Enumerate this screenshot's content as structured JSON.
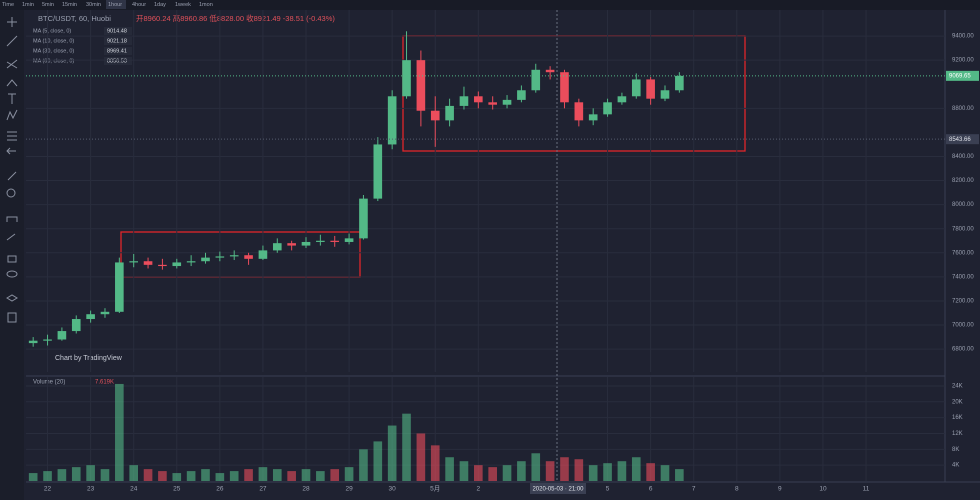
{
  "toolbar": {
    "intervals": [
      "Time",
      "1min",
      "5min",
      "15min",
      "30min",
      "1hour",
      "4hour",
      "1day",
      "1week",
      "1mon"
    ],
    "active": 5
  },
  "header": {
    "symbol": "BTC/USDT, 60, Huobi",
    "ohlc": "开8960.24 高8960.86 低8828.00 收8921.49 -38.51 (-0.43%)"
  },
  "indicators": [
    {
      "name": "MA (5, close, 0)",
      "value": "9014.48"
    },
    {
      "name": "MA (10, close, 0)",
      "value": "9021.18"
    },
    {
      "name": "MA (30, close, 0)",
      "value": "8969.41"
    },
    {
      "name": "MA (60, close, 0)",
      "value": "8856.53"
    }
  ],
  "watermark": "Chart by TradingView",
  "volume_header": {
    "name": "Volume (20)",
    "value": "7.619K"
  },
  "crosshair_label": "2020-05-03 · 21:00",
  "chart_data": {
    "type": "candlestick",
    "categories": [
      null,
      "22",
      null,
      null,
      "23",
      null,
      null,
      "24",
      null,
      null,
      "25",
      null,
      null,
      "26",
      null,
      null,
      "27",
      null,
      null,
      "28",
      null,
      null,
      "29",
      null,
      null,
      "30",
      null,
      null,
      "5月",
      null,
      null,
      "2",
      null,
      null,
      null,
      null,
      null,
      null,
      null,
      null,
      "5",
      null,
      null,
      "6",
      null,
      null,
      "7",
      null,
      null,
      "8",
      null,
      null,
      "9",
      null,
      null,
      "10",
      null,
      null,
      "11",
      null,
      null,
      null,
      null,
      null
    ],
    "open": [
      6850,
      6870,
      6880,
      6950,
      7050,
      7090,
      7110,
      7520,
      7530,
      7500,
      7490,
      7520,
      7530,
      7560,
      7570,
      7580,
      7550,
      7620,
      7680,
      7660,
      7690,
      7700,
      7690,
      7720,
      8050,
      8500,
      8900,
      9200,
      8780,
      8700,
      8820,
      8900,
      8850,
      8830,
      8870,
      8950,
      9120,
      9100,
      8850,
      8700,
      8750,
      8850,
      8900,
      9040,
      8880,
      8950,
      null,
      null,
      null,
      null,
      null,
      null,
      null,
      null,
      null,
      null,
      null,
      null,
      null,
      null,
      null,
      null,
      null,
      null
    ],
    "high": [
      6900,
      6920,
      6980,
      7080,
      7120,
      7140,
      7560,
      7590,
      7560,
      7550,
      7550,
      7580,
      7600,
      7610,
      7620,
      7600,
      7660,
      7720,
      7700,
      7730,
      7750,
      7740,
      7760,
      8080,
      8560,
      8950,
      9440,
      9280,
      8900,
      8880,
      8980,
      8940,
      8900,
      8910,
      8990,
      9170,
      9150,
      9120,
      8880,
      8800,
      8880,
      8930,
      9090,
      9060,
      8990,
      9100,
      null,
      null,
      null,
      null,
      null,
      null,
      null,
      null,
      null,
      null,
      null,
      null,
      null,
      null,
      null,
      null,
      null,
      null
    ],
    "low": [
      6820,
      6830,
      6870,
      6930,
      7020,
      7060,
      7100,
      7480,
      7470,
      7460,
      7470,
      7490,
      7510,
      7530,
      7540,
      7500,
      7540,
      7600,
      7620,
      7640,
      7660,
      7650,
      7670,
      7710,
      8030,
      8460,
      8880,
      8650,
      8480,
      8650,
      8790,
      8800,
      8790,
      8800,
      8850,
      8930,
      9040,
      8800,
      8650,
      8660,
      8730,
      8830,
      8880,
      8830,
      8860,
      8930,
      null,
      null,
      null,
      null,
      null,
      null,
      null,
      null,
      null,
      null,
      null,
      null,
      null,
      null,
      null,
      null,
      null,
      null
    ],
    "close": [
      6870,
      6880,
      6950,
      7050,
      7090,
      7110,
      7520,
      7530,
      7500,
      7490,
      7520,
      7530,
      7560,
      7570,
      7580,
      7550,
      7620,
      7680,
      7660,
      7690,
      7700,
      7690,
      7720,
      8050,
      8500,
      8900,
      9200,
      8780,
      8700,
      8820,
      8900,
      8850,
      8830,
      8870,
      8950,
      9120,
      9100,
      8850,
      8700,
      8750,
      8850,
      8900,
      9040,
      8880,
      8950,
      9069.65,
      null,
      null,
      null,
      null,
      null,
      null,
      null,
      null,
      null,
      null,
      null,
      null,
      null,
      null,
      null,
      null,
      null,
      null
    ],
    "volume": [
      2000,
      2500,
      3000,
      3500,
      4000,
      3000,
      24500,
      4000,
      3000,
      2500,
      2000,
      2500,
      3000,
      2000,
      2500,
      3000,
      3500,
      3000,
      2500,
      3000,
      2500,
      3000,
      3500,
      8000,
      10000,
      14000,
      17000,
      12000,
      9000,
      6000,
      5000,
      4000,
      3500,
      4000,
      5000,
      7000,
      5000,
      6000,
      5500,
      4000,
      4500,
      5000,
      6000,
      4500,
      4000,
      3000,
      null,
      null,
      null,
      null,
      null,
      null,
      null,
      null,
      null,
      null,
      null,
      null,
      null,
      null,
      null,
      null,
      null,
      null
    ],
    "up_color": "#53b987",
    "down_color": "#eb4d5c",
    "ylim": [
      6610,
      9600
    ],
    "yticks": [
      {
        "value": 6800,
        "label": "6800.00"
      },
      {
        "value": 7000,
        "label": "7000.00"
      },
      {
        "value": 7200,
        "label": "7200.00"
      },
      {
        "value": 7400,
        "label": "7400.00"
      },
      {
        "value": 7600,
        "label": "7600.00"
      },
      {
        "value": 7800,
        "label": "7800.00"
      },
      {
        "value": 8000,
        "label": "8000.00"
      },
      {
        "value": 8200,
        "label": "8200.00"
      },
      {
        "value": 8400,
        "label": "8400.00"
      },
      {
        "value": 8800,
        "label": "8800.00"
      },
      {
        "value": 9200,
        "label": "9200.00"
      },
      {
        "value": 9400,
        "label": "9400.00"
      }
    ],
    "last_price": 9069.65,
    "marked_price": 8543.66,
    "volume_ylim": [
      0,
      25500
    ],
    "volume_ticks": [
      {
        "value": 4000,
        "label": "4K"
      },
      {
        "value": 8000,
        "label": "8K"
      },
      {
        "value": 12000,
        "label": "12K"
      },
      {
        "value": 16000,
        "label": "16K"
      },
      {
        "value": 20000,
        "label": "20K"
      },
      {
        "value": 24000,
        "label": "24K"
      }
    ],
    "grid": true
  }
}
